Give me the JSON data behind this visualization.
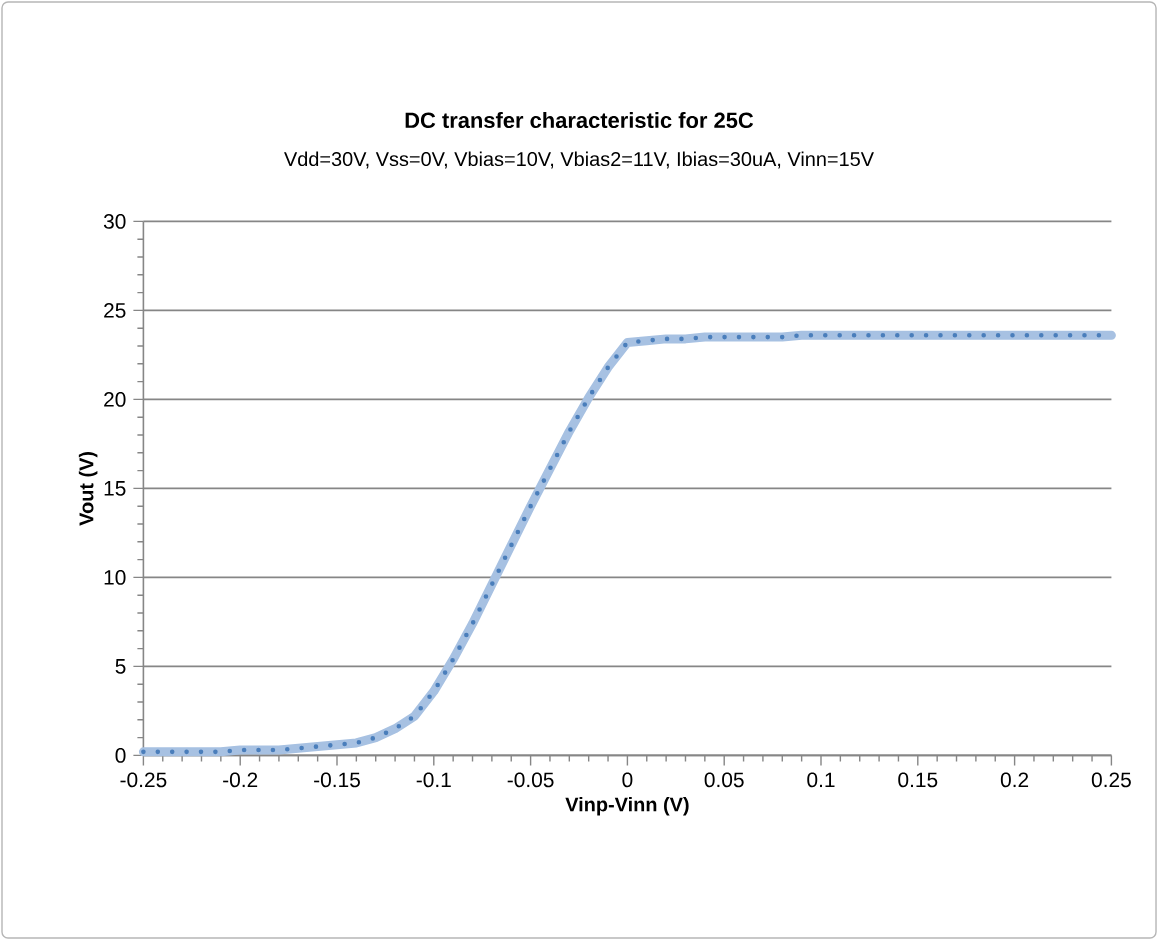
{
  "chart_data": {
    "type": "line",
    "title": "DC transfer characteristic for 25C",
    "subtitle": "Vdd=30V, Vss=0V, Vbias=10V, Vbias2=11V, Ibias=30uA, Vinn=15V",
    "xlabel": "Vinp-Vinn (V)",
    "ylabel": "Vout (V)",
    "x": [
      -0.25,
      -0.24,
      -0.23,
      -0.22,
      -0.21,
      -0.2,
      -0.19,
      -0.18,
      -0.17,
      -0.16,
      -0.15,
      -0.14,
      -0.13,
      -0.12,
      -0.11,
      -0.1,
      -0.09,
      -0.08,
      -0.07,
      -0.06,
      -0.05,
      -0.04,
      -0.03,
      -0.02,
      -0.01,
      0,
      0.01,
      0.02,
      0.03,
      0.04,
      0.05,
      0.06,
      0.07,
      0.08,
      0.09,
      0.1,
      0.11,
      0.12,
      0.13,
      0.14,
      0.15,
      0.16,
      0.17,
      0.18,
      0.19,
      0.2,
      0.21,
      0.22,
      0.23,
      0.24,
      0.25
    ],
    "series": [
      {
        "color": "#a7c1e2",
        "values": [
          0.2,
          0.2,
          0.2,
          0.2,
          0.2,
          0.3,
          0.3,
          0.3,
          0.4,
          0.5,
          0.6,
          0.7,
          1.0,
          1.5,
          2.2,
          3.6,
          5.4,
          7.4,
          9.6,
          11.8,
          14.0,
          16.1,
          18.2,
          20.1,
          21.8,
          23.2,
          23.3,
          23.4,
          23.4,
          23.5,
          23.5,
          23.5,
          23.5,
          23.5,
          23.6,
          23.6,
          23.6,
          23.6,
          23.6,
          23.6,
          23.6,
          23.6,
          23.6,
          23.6,
          23.6,
          23.6,
          23.6,
          23.6,
          23.6,
          23.6,
          23.6
        ]
      },
      {
        "color": "#4a7ebb",
        "line_style": "dotted",
        "values": [
          0.2,
          0.2,
          0.2,
          0.2,
          0.2,
          0.3,
          0.3,
          0.3,
          0.4,
          0.5,
          0.6,
          0.7,
          1.0,
          1.5,
          2.2,
          3.6,
          5.4,
          7.4,
          9.6,
          11.8,
          14.0,
          16.1,
          18.2,
          20.1,
          21.8,
          23.2,
          23.3,
          23.4,
          23.4,
          23.5,
          23.5,
          23.5,
          23.5,
          23.5,
          23.6,
          23.6,
          23.6,
          23.6,
          23.6,
          23.6,
          23.6,
          23.6,
          23.6,
          23.6,
          23.6,
          23.6,
          23.6,
          23.6,
          23.6,
          23.6,
          23.6
        ]
      }
    ],
    "xlim": [
      -0.25,
      0.25
    ],
    "ylim": [
      0,
      30
    ],
    "xticks": [
      -0.25,
      -0.2,
      -0.15,
      -0.1,
      -0.05,
      0,
      0.05,
      0.1,
      0.15,
      0.2,
      0.25
    ],
    "yticks": [
      0,
      5,
      10,
      15,
      20,
      25,
      30
    ],
    "grid": "y"
  }
}
